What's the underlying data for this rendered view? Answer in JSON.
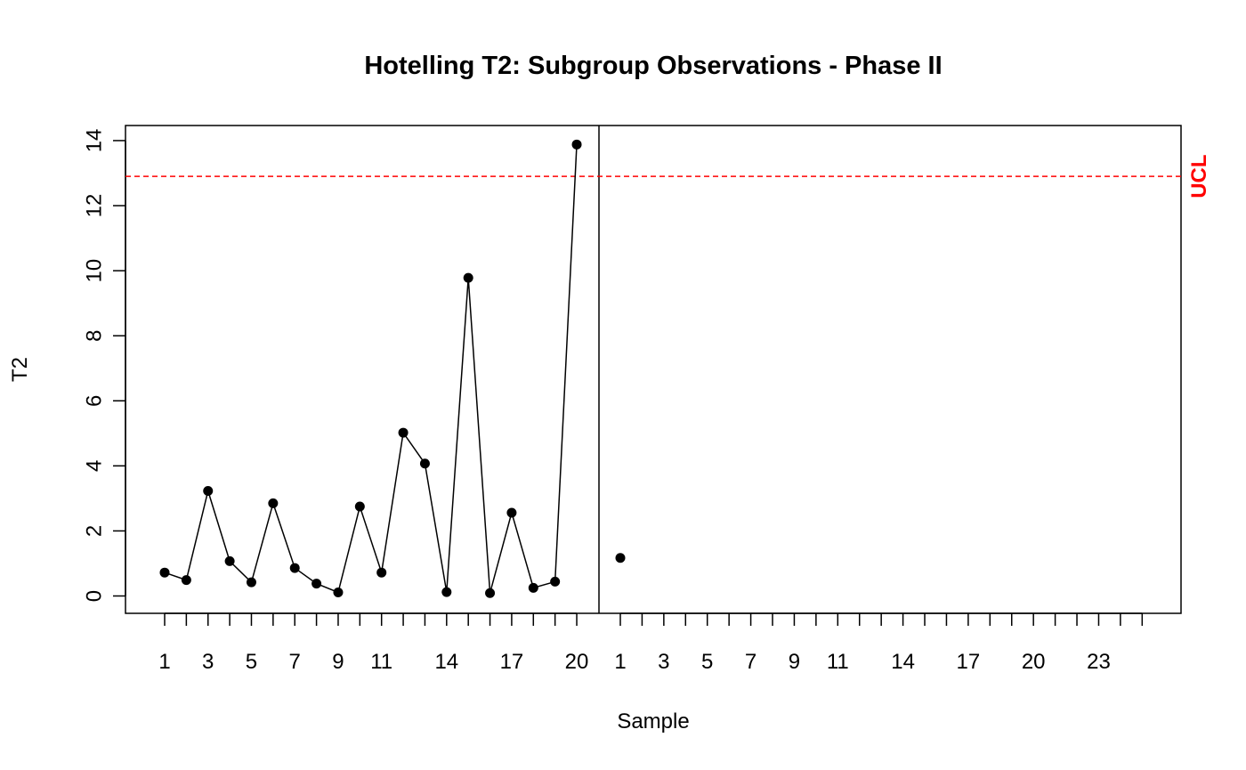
{
  "chart_data": {
    "type": "line",
    "title": "Hotelling T2: Subgroup Observations - Phase II",
    "xlabel": "Sample",
    "ylabel": "T2",
    "ylim": [
      -0.5,
      14.5
    ],
    "yticks": [
      0,
      2,
      4,
      6,
      8,
      10,
      12,
      14
    ],
    "grid": false,
    "ucl": {
      "label": "UCL",
      "value": 12.9,
      "color": "#ff0000"
    },
    "phase1": {
      "n_ticks": 20,
      "tick_labels": [
        "1",
        "3",
        "5",
        "7",
        "9",
        "11",
        "14",
        "17",
        "20"
      ],
      "tick_label_positions": [
        1,
        3,
        5,
        7,
        9,
        11,
        14,
        17,
        20
      ],
      "x": [
        1,
        2,
        3,
        4,
        5,
        6,
        7,
        8,
        9,
        10,
        11,
        12,
        13,
        14,
        15,
        16,
        17,
        18,
        19,
        20
      ],
      "values": [
        0.72,
        0.49,
        3.23,
        1.07,
        0.42,
        2.85,
        0.86,
        0.38,
        0.11,
        2.75,
        0.72,
        5.02,
        4.07,
        0.12,
        9.78,
        0.09,
        2.56,
        0.25,
        0.44,
        13.88
      ]
    },
    "phase2": {
      "n_ticks": 25,
      "tick_labels": [
        "1",
        "3",
        "5",
        "7",
        "9",
        "11",
        "14",
        "17",
        "20",
        "23"
      ],
      "tick_label_positions": [
        1,
        3,
        5,
        7,
        9,
        11,
        14,
        17,
        20,
        23
      ],
      "x": [
        1
      ],
      "values": [
        1.17
      ]
    }
  }
}
